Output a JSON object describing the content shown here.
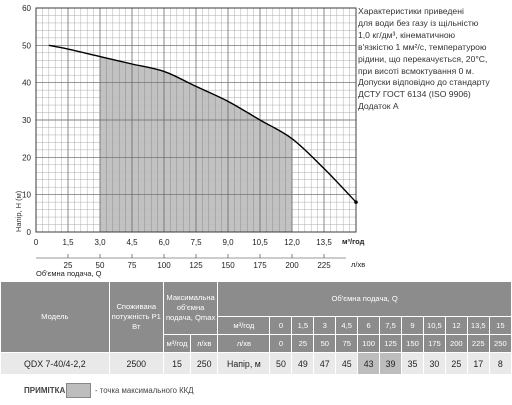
{
  "chart_data": {
    "type": "line",
    "ylabel": "Напір, Н (м)",
    "xlabel": "м³/год",
    "xlabel_secondary": "л/хв",
    "xlabel_bottom": "Об'ємна подача, Q",
    "xlim": [
      0,
      15
    ],
    "ylim": [
      0,
      60
    ],
    "x_ticks": [
      "0",
      "1,5",
      "3,0",
      "4,5",
      "6,0",
      "7,5",
      "9,0",
      "10,5",
      "12,0",
      "13,5"
    ],
    "x_tick_values": [
      0,
      1.5,
      3,
      4.5,
      6,
      7.5,
      9,
      10.5,
      12,
      13.5
    ],
    "lpm_ticks": [
      "25",
      "50",
      "75",
      "100",
      "125",
      "150",
      "175",
      "200",
      "225"
    ],
    "lpm_tick_values": [
      25,
      50,
      75,
      100,
      125,
      150,
      175,
      200,
      225
    ],
    "y_ticks": [
      "0",
      "10",
      "20",
      "30",
      "40",
      "50",
      "60"
    ],
    "y_tick_values": [
      0,
      10,
      20,
      30,
      40,
      50,
      60
    ],
    "grid": true,
    "highlight_range": [
      3,
      12
    ],
    "series": [
      {
        "x": [
          0.6,
          1.5,
          3,
          4.5,
          6,
          7.5,
          9,
          10.5,
          12,
          13.5,
          15
        ],
        "y": [
          50,
          49,
          47,
          45,
          43,
          39,
          35,
          30,
          25,
          17,
          8
        ]
      }
    ]
  },
  "note": "Характеристики приведені\nдля води без газу із щільністю\n1,0 кг/дм³, кінематичною\nв'язкістю 1 мм²/с, температурою\nрідини, що перекачується, 20°С,\nпри висоті всмоктування 0 м.\nДопуски відповідно до стандарту\nДСТУ ГОСТ 6134 (ISO 9906)\nДодаток А",
  "table": {
    "model_header": "Модель",
    "power_header": "Споживана потужність P1 Вт",
    "maxflow_header": "Максимальна об'ємна подача, Qmax",
    "flow_header": "Об'ємна подача, Q",
    "unit_m3h": "м³/год",
    "unit_lpm": "л/хв",
    "head_label": "Напір, м",
    "m3h_values": [
      "0",
      "1,5",
      "3",
      "4,5",
      "6",
      "7,5",
      "9",
      "10,5",
      "12",
      "13,5",
      "15"
    ],
    "lpm_values": [
      "0",
      "25",
      "50",
      "75",
      "100",
      "125",
      "150",
      "175",
      "200",
      "225",
      "250"
    ],
    "row": {
      "model": "QDX 7-40/4-2,2",
      "power": "2500",
      "qmax_m3h": "15",
      "qmax_lpm": "250",
      "heads": [
        "50",
        "49",
        "47",
        "45",
        "43",
        "39",
        "35",
        "30",
        "25",
        "17",
        "8"
      ]
    },
    "highlight_indices": [
      4,
      5
    ]
  },
  "footer": {
    "label": "ПРИМІТКА:",
    "legend_text": "- точка максимального ККД"
  },
  "colors": {
    "highlight": "#bdbdbd",
    "header": "#8c8c8c",
    "cell": "#e9e9e9",
    "grid": "#9a9a9a",
    "curve": "#000000"
  }
}
